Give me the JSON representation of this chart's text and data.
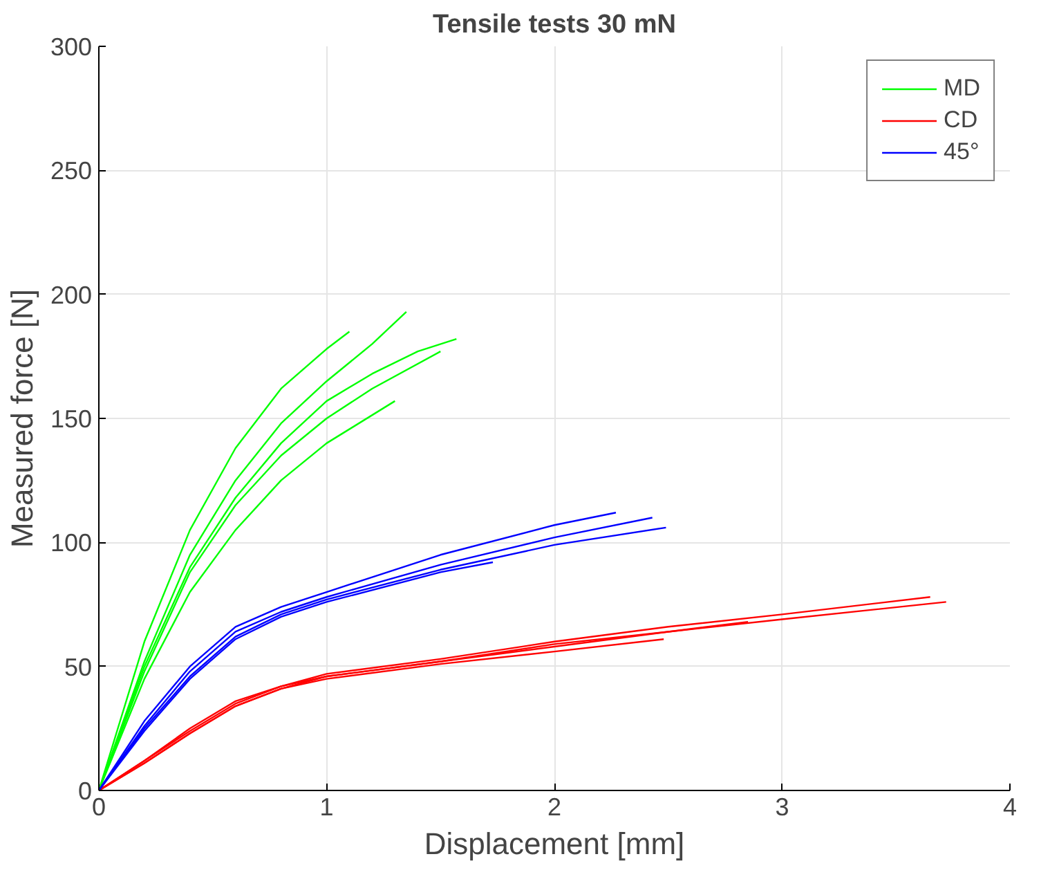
{
  "chart_data": {
    "type": "line",
    "title": "Tensile tests 30 mN",
    "xlabel": "Displacement [mm]",
    "ylabel": "Measured force [N]",
    "xlim": [
      0,
      4
    ],
    "ylim": [
      0,
      300
    ],
    "xticks": [
      0,
      1,
      2,
      3,
      4
    ],
    "yticks": [
      0,
      50,
      100,
      150,
      200,
      250,
      300
    ],
    "grid": true,
    "legend": "top right",
    "series": [
      {
        "name": "MD",
        "color": "#00ff00",
        "x": [
          0,
          0.2,
          0.4,
          0.6,
          0.8,
          1.0,
          1.1
        ],
        "values": [
          0,
          60,
          105,
          138,
          162,
          178,
          185
        ]
      },
      {
        "color": "#00ff00",
        "x": [
          0,
          0.2,
          0.4,
          0.6,
          0.8,
          1.0,
          1.2,
          1.35
        ],
        "values": [
          0,
          52,
          95,
          125,
          148,
          165,
          180,
          193
        ]
      },
      {
        "color": "#00ff00",
        "x": [
          0,
          0.2,
          0.4,
          0.6,
          0.8,
          1.0,
          1.2,
          1.5
        ],
        "values": [
          0,
          48,
          88,
          115,
          135,
          150,
          162,
          177
        ]
      },
      {
        "color": "#00ff00",
        "x": [
          0,
          0.2,
          0.4,
          0.6,
          0.8,
          1.0,
          1.2,
          1.4,
          1.57
        ],
        "values": [
          0,
          50,
          90,
          118,
          140,
          157,
          168,
          177,
          182
        ]
      },
      {
        "color": "#00ff00",
        "x": [
          0,
          0.2,
          0.4,
          0.6,
          0.8,
          1.0,
          1.3
        ],
        "values": [
          0,
          45,
          80,
          105,
          125,
          140,
          157
        ]
      },
      {
        "name": "CD",
        "color": "#ff0000",
        "x": [
          0,
          0.2,
          0.4,
          0.6,
          0.8,
          1.0,
          1.5,
          2.0,
          2.5,
          3.0,
          3.65
        ],
        "values": [
          0,
          12,
          25,
          36,
          42,
          47,
          53,
          60,
          66,
          71,
          78
        ]
      },
      {
        "color": "#ff0000",
        "x": [
          0,
          0.2,
          0.4,
          0.6,
          0.8,
          1.0,
          1.5,
          2.0,
          2.5,
          3.0,
          3.72
        ],
        "values": [
          0,
          11,
          23,
          34,
          41,
          46,
          52,
          59,
          64,
          69,
          76
        ]
      },
      {
        "color": "#ff0000",
        "x": [
          0,
          0.2,
          0.4,
          0.6,
          0.8,
          1.0,
          1.5,
          2.0,
          2.48
        ],
        "values": [
          0,
          11,
          23,
          34,
          41,
          45,
          51,
          56,
          61
        ]
      },
      {
        "color": "#ff0000",
        "x": [
          0,
          0.2,
          0.4,
          0.6,
          0.8,
          1.0,
          1.5,
          2.0,
          2.5,
          2.85
        ],
        "values": [
          0,
          12,
          24,
          35,
          42,
          46,
          52,
          58,
          64,
          68
        ]
      },
      {
        "name": "45°",
        "color": "#0000ff",
        "x": [
          0,
          0.2,
          0.4,
          0.6,
          0.8,
          1.0,
          1.5,
          2.0,
          2.27
        ],
        "values": [
          0,
          28,
          50,
          66,
          74,
          80,
          95,
          107,
          112
        ]
      },
      {
        "color": "#0000ff",
        "x": [
          0,
          0.2,
          0.4,
          0.6,
          0.8,
          1.0,
          1.5,
          2.0,
          2.43
        ],
        "values": [
          0,
          26,
          48,
          64,
          72,
          78,
          91,
          102,
          110
        ]
      },
      {
        "color": "#0000ff",
        "x": [
          0,
          0.2,
          0.4,
          0.6,
          0.8,
          1.0,
          1.5,
          2.0,
          2.49
        ],
        "values": [
          0,
          25,
          46,
          62,
          71,
          77,
          89,
          99,
          106
        ]
      },
      {
        "color": "#0000ff",
        "x": [
          0,
          0.2,
          0.4,
          0.6,
          0.8,
          1.0,
          1.5,
          1.73
        ],
        "values": [
          0,
          24,
          45,
          61,
          70,
          76,
          88,
          92
        ]
      }
    ]
  }
}
